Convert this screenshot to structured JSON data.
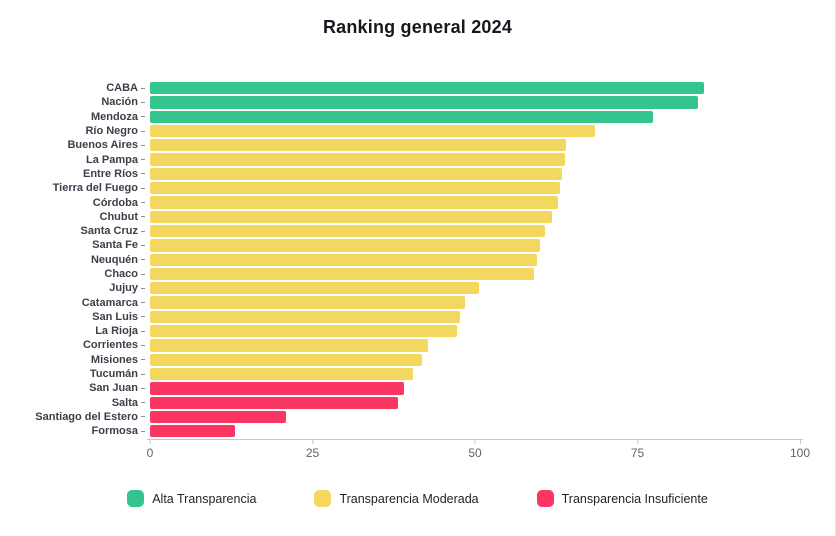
{
  "chart_data": {
    "type": "bar",
    "orientation": "horizontal",
    "title": "Ranking general 2024",
    "categories": [
      "CABA",
      "Nación",
      "Mendoza",
      "Río Negro",
      "Buenos Aires",
      "La Pampa",
      "Entre Ríos",
      "Tierra del Fuego",
      "Córdoba",
      "Chubut",
      "Santa Cruz",
      "Santa Fe",
      "Neuquén",
      "Chaco",
      "Jujuy",
      "Catamarca",
      "San Luis",
      "La Rioja",
      "Corrientes",
      "Misiones",
      "Tucumán",
      "San Juan",
      "Salta",
      "Santiago del Estero",
      "Formosa"
    ],
    "values": [
      85.2,
      84.3,
      77.4,
      68.4,
      64.0,
      63.8,
      63.4,
      63.1,
      62.7,
      61.9,
      60.8,
      60.0,
      59.6,
      59.0,
      50.6,
      48.4,
      47.7,
      47.3,
      42.7,
      41.8,
      40.4,
      39.0,
      38.1,
      20.9,
      13.0
    ],
    "groups": [
      "alta",
      "alta",
      "alta",
      "moderada",
      "moderada",
      "moderada",
      "moderada",
      "moderada",
      "moderada",
      "moderada",
      "moderada",
      "moderada",
      "moderada",
      "moderada",
      "moderada",
      "moderada",
      "moderada",
      "moderada",
      "moderada",
      "moderada",
      "moderada",
      "insuficiente",
      "insuficiente",
      "insuficiente",
      "insuficiente"
    ],
    "group_colors": {
      "alta": "#34c48d",
      "moderada": "#f3d75e",
      "insuficiente": "#fa3762"
    },
    "xlim": [
      0,
      100
    ],
    "xticks": [
      0,
      25,
      50,
      75,
      100
    ],
    "grid": false,
    "legend_position": "bottom",
    "legend": [
      {
        "label": "Alta Transparencia",
        "group": "alta",
        "color": "#34c48d"
      },
      {
        "label": "Transparencia Moderada",
        "group": "moderada",
        "color": "#f3d75e"
      },
      {
        "label": "Transparencia Insuficiente",
        "group": "insuficiente",
        "color": "#fa3762"
      }
    ]
  }
}
